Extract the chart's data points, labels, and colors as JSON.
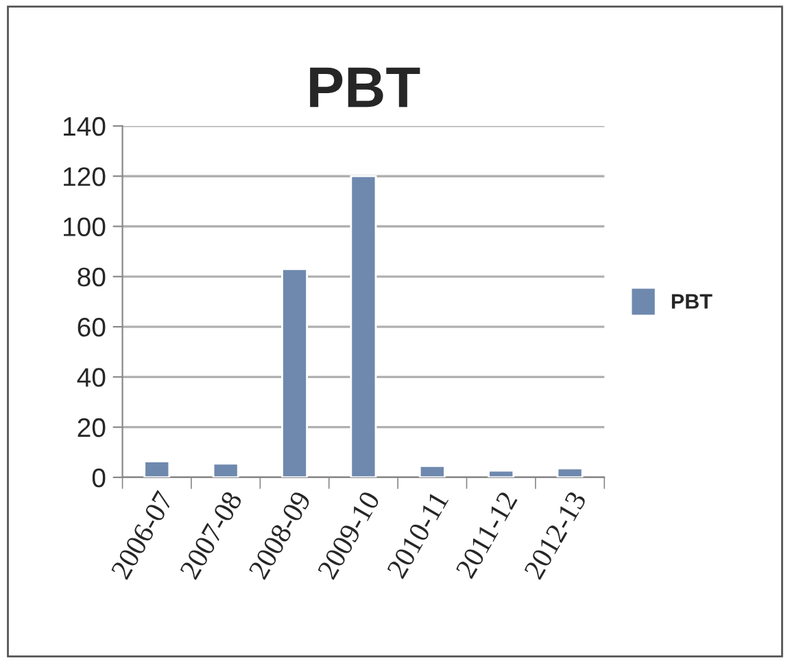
{
  "chart_data": {
    "type": "bar",
    "title": "PBT",
    "categories": [
      "2006-07",
      "2007-08",
      "2008-09",
      "2009-10",
      "2010-11",
      "2011-12",
      "2012-13"
    ],
    "series": [
      {
        "name": "PBT",
        "color": "#6f89ae",
        "values": [
          6.4,
          5.5,
          83,
          120,
          4.5,
          2.7,
          3.6
        ]
      }
    ],
    "ylim": [
      0,
      140
    ],
    "yticks": [
      0,
      20,
      40,
      60,
      80,
      100,
      120,
      140
    ],
    "grid": "y",
    "legend": "right"
  }
}
